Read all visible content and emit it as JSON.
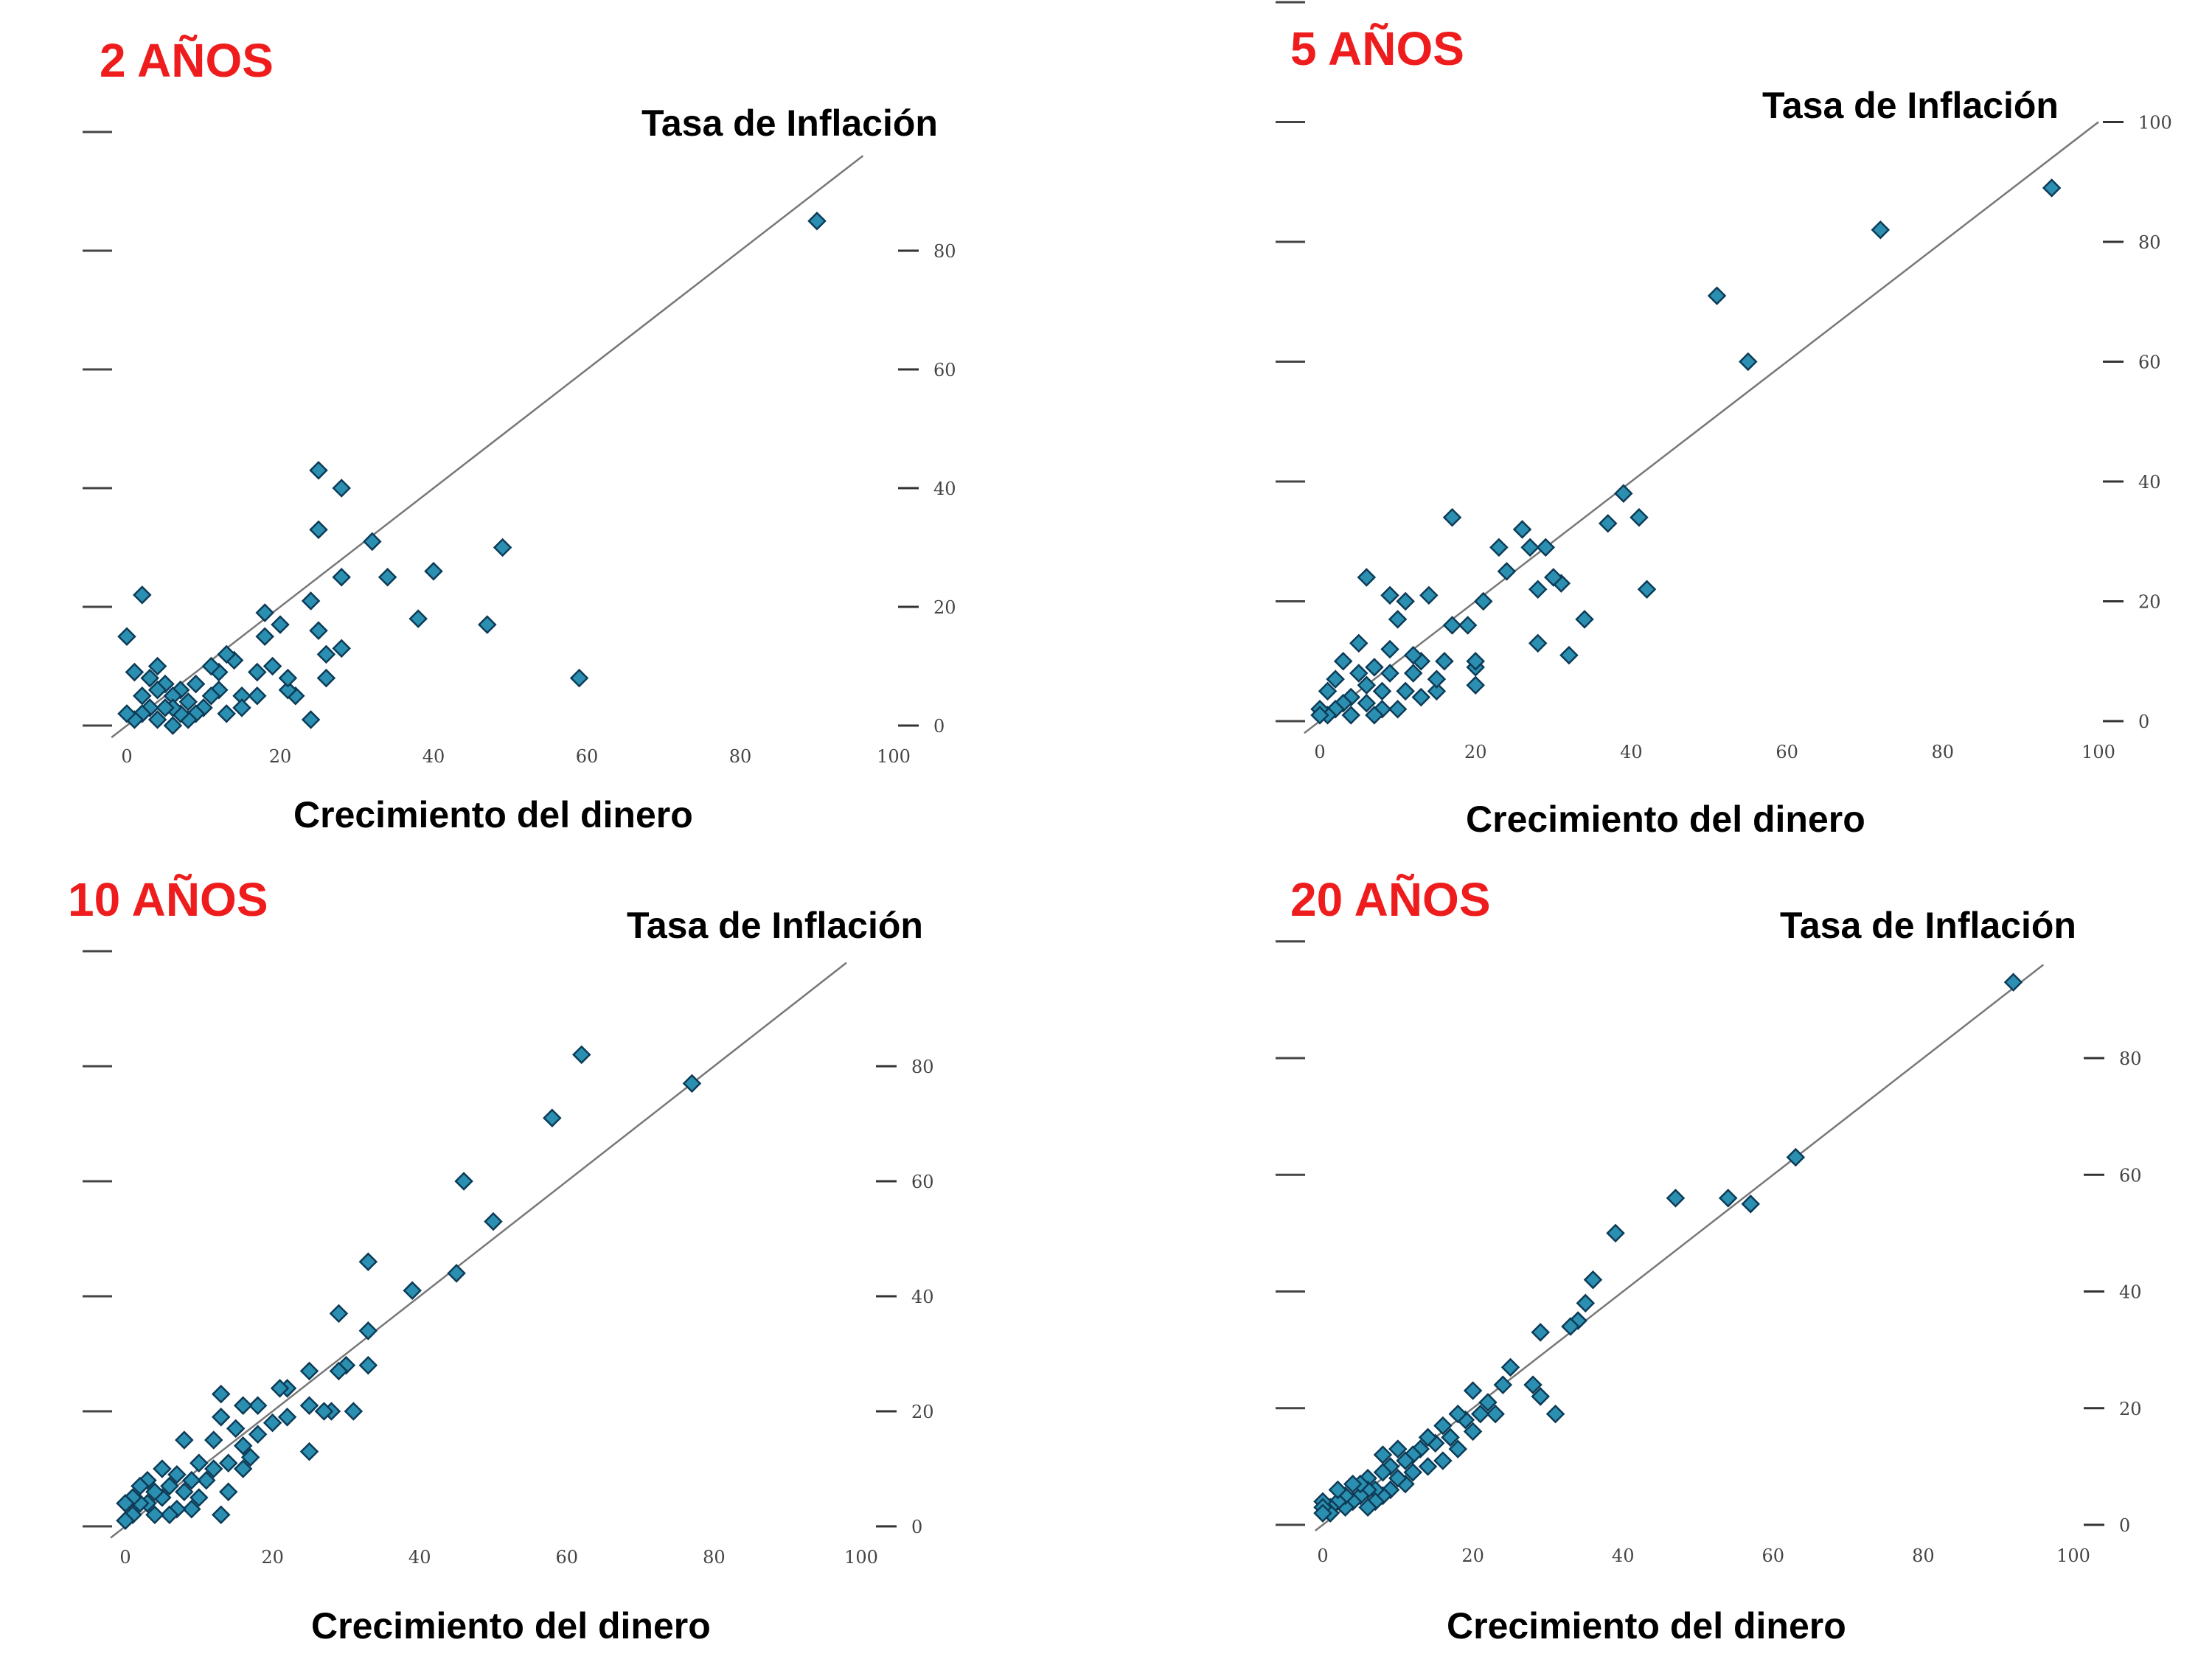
{
  "colors": {
    "title": "#ee1c1c",
    "point_fill": "#2a8fb0",
    "point_stroke": "#0d3b57",
    "trend": "#777777"
  },
  "chart_data": [
    {
      "type": "scatter",
      "title": "2 AÑOS",
      "ylabel": "Tasa de Inflación",
      "xlabel": "Crecimiento del dinero",
      "xlim": [
        0,
        100
      ],
      "ylim": [
        0,
        100
      ],
      "xticks": [
        "0",
        "20",
        "40",
        "60",
        "80",
        "100"
      ],
      "yticks": [
        "0",
        "20",
        "40",
        "60",
        "80"
      ],
      "trend_line": [
        [
          -2,
          -2
        ],
        [
          96,
          96
        ]
      ],
      "points": [
        [
          90,
          85
        ],
        [
          59,
          8
        ],
        [
          49,
          30
        ],
        [
          47,
          17
        ],
        [
          40,
          26
        ],
        [
          38,
          18
        ],
        [
          34,
          25
        ],
        [
          32,
          31
        ],
        [
          28,
          40
        ],
        [
          28,
          25
        ],
        [
          28,
          13
        ],
        [
          25,
          43
        ],
        [
          25,
          33
        ],
        [
          26,
          12
        ],
        [
          25,
          16
        ],
        [
          26,
          8
        ],
        [
          24,
          21
        ],
        [
          24,
          1
        ],
        [
          22,
          5
        ],
        [
          21,
          6
        ],
        [
          21,
          8
        ],
        [
          20,
          17
        ],
        [
          19,
          10
        ],
        [
          18,
          19
        ],
        [
          18,
          15
        ],
        [
          17,
          9
        ],
        [
          17,
          5
        ],
        [
          15,
          5
        ],
        [
          15,
          3
        ],
        [
          14,
          11
        ],
        [
          13,
          12
        ],
        [
          13,
          2
        ],
        [
          12,
          9
        ],
        [
          12,
          6
        ],
        [
          11,
          10
        ],
        [
          11,
          5
        ],
        [
          10,
          3
        ],
        [
          9,
          7
        ],
        [
          9,
          2
        ],
        [
          8,
          4
        ],
        [
          8,
          1
        ],
        [
          7,
          6
        ],
        [
          7,
          2
        ],
        [
          6,
          5
        ],
        [
          6,
          3
        ],
        [
          6,
          0
        ],
        [
          5,
          7
        ],
        [
          5,
          3
        ],
        [
          4,
          10
        ],
        [
          4,
          6
        ],
        [
          4,
          1
        ],
        [
          3,
          8
        ],
        [
          3,
          3
        ],
        [
          2,
          22
        ],
        [
          2,
          5
        ],
        [
          2,
          2
        ],
        [
          1,
          9
        ],
        [
          1,
          1
        ],
        [
          0,
          15
        ],
        [
          0,
          2
        ]
      ]
    },
    {
      "type": "scatter",
      "title": "5 AÑOS",
      "ylabel": "Tasa de Inflación",
      "xlabel": "Crecimiento del dinero",
      "xlim": [
        0,
        100
      ],
      "ylim": [
        0,
        100
      ],
      "xticks": [
        "0",
        "20",
        "40",
        "60",
        "80",
        "100"
      ],
      "yticks": [
        "0",
        "20",
        "40",
        "60",
        "80",
        "100"
      ],
      "trend_line": [
        [
          -2,
          -2
        ],
        [
          100,
          100
        ]
      ],
      "points": [
        [
          94,
          89
        ],
        [
          72,
          82
        ],
        [
          51,
          71
        ],
        [
          55,
          60
        ],
        [
          39,
          38
        ],
        [
          41,
          34
        ],
        [
          37,
          33
        ],
        [
          42,
          22
        ],
        [
          34,
          17
        ],
        [
          32,
          11
        ],
        [
          31,
          23
        ],
        [
          30,
          24
        ],
        [
          29,
          29
        ],
        [
          28,
          22
        ],
        [
          28,
          13
        ],
        [
          27,
          29
        ],
        [
          26,
          32
        ],
        [
          24,
          25
        ],
        [
          23,
          29
        ],
        [
          21,
          20
        ],
        [
          20,
          6
        ],
        [
          20,
          9
        ],
        [
          20,
          10
        ],
        [
          19,
          16
        ],
        [
          17,
          34
        ],
        [
          17,
          16
        ],
        [
          16,
          10
        ],
        [
          15,
          5
        ],
        [
          15,
          7
        ],
        [
          14,
          21
        ],
        [
          13,
          10
        ],
        [
          13,
          4
        ],
        [
          12,
          8
        ],
        [
          12,
          11
        ],
        [
          11,
          20
        ],
        [
          11,
          5
        ],
        [
          10,
          17
        ],
        [
          10,
          2
        ],
        [
          9,
          21
        ],
        [
          9,
          8
        ],
        [
          9,
          12
        ],
        [
          8,
          5
        ],
        [
          8,
          2
        ],
        [
          7,
          9
        ],
        [
          7,
          1
        ],
        [
          6,
          24
        ],
        [
          6,
          6
        ],
        [
          6,
          3
        ],
        [
          5,
          13
        ],
        [
          5,
          8
        ],
        [
          4,
          4
        ],
        [
          4,
          1
        ],
        [
          3,
          10
        ],
        [
          3,
          3
        ],
        [
          2,
          7
        ],
        [
          2,
          2
        ],
        [
          1,
          5
        ],
        [
          1,
          1
        ],
        [
          0,
          2
        ],
        [
          0,
          1
        ]
      ]
    },
    {
      "type": "scatter",
      "title": "10 AÑOS",
      "ylabel": "Tasa de Inflación",
      "xlabel": "Crecimiento del dinero",
      "xlim": [
        0,
        100
      ],
      "ylim": [
        0,
        100
      ],
      "xticks": [
        "0",
        "20",
        "40",
        "60",
        "80",
        "100"
      ],
      "yticks": [
        "0",
        "20",
        "40",
        "60",
        "80"
      ],
      "trend_line": [
        [
          -2,
          -2
        ],
        [
          98,
          98
        ]
      ],
      "points": [
        [
          62,
          82
        ],
        [
          58,
          71
        ],
        [
          77,
          77
        ],
        [
          46,
          60
        ],
        [
          50,
          53
        ],
        [
          45,
          44
        ],
        [
          39,
          41
        ],
        [
          33,
          46
        ],
        [
          33,
          34
        ],
        [
          33,
          28
        ],
        [
          31,
          20
        ],
        [
          30,
          28
        ],
        [
          29,
          37
        ],
        [
          29,
          27
        ],
        [
          28,
          20
        ],
        [
          27,
          20
        ],
        [
          25,
          27
        ],
        [
          25,
          21
        ],
        [
          25,
          13
        ],
        [
          22,
          24
        ],
        [
          22,
          19
        ],
        [
          21,
          24
        ],
        [
          20,
          18
        ],
        [
          18,
          21
        ],
        [
          18,
          16
        ],
        [
          17,
          12
        ],
        [
          16,
          21
        ],
        [
          16,
          14
        ],
        [
          16,
          10
        ],
        [
          15,
          17
        ],
        [
          14,
          11
        ],
        [
          14,
          6
        ],
        [
          13,
          23
        ],
        [
          13,
          19
        ],
        [
          13,
          2
        ],
        [
          12,
          15
        ],
        [
          12,
          10
        ],
        [
          11,
          8
        ],
        [
          10,
          11
        ],
        [
          10,
          5
        ],
        [
          9,
          8
        ],
        [
          9,
          3
        ],
        [
          8,
          15
        ],
        [
          8,
          6
        ],
        [
          7,
          9
        ],
        [
          7,
          3
        ],
        [
          6,
          7
        ],
        [
          6,
          2
        ],
        [
          5,
          10
        ],
        [
          5,
          5
        ],
        [
          4,
          6
        ],
        [
          4,
          2
        ],
        [
          3,
          8
        ],
        [
          3,
          4
        ],
        [
          2,
          4
        ],
        [
          2,
          7
        ],
        [
          1,
          5
        ],
        [
          1,
          2
        ],
        [
          0,
          4
        ],
        [
          0,
          1
        ]
      ]
    },
    {
      "type": "scatter",
      "title": "20 AÑOS",
      "ylabel": "Tasa de Inflación",
      "xlabel": "Crecimiento del dinero",
      "xlim": [
        0,
        100
      ],
      "ylim": [
        0,
        100
      ],
      "xticks": [
        "0",
        "20",
        "40",
        "60",
        "80",
        "100"
      ],
      "yticks": [
        "0",
        "20",
        "40",
        "60",
        "80"
      ],
      "trend_line": [
        [
          -1,
          -1
        ],
        [
          96,
          96
        ]
      ],
      "points": [
        [
          92,
          93
        ],
        [
          63,
          63
        ],
        [
          57,
          55
        ],
        [
          54,
          56
        ],
        [
          47,
          56
        ],
        [
          39,
          50
        ],
        [
          36,
          42
        ],
        [
          35,
          38
        ],
        [
          34,
          35
        ],
        [
          33,
          34
        ],
        [
          31,
          19
        ],
        [
          29,
          22
        ],
        [
          29,
          33
        ],
        [
          28,
          24
        ],
        [
          25,
          27
        ],
        [
          24,
          24
        ],
        [
          23,
          19
        ],
        [
          22,
          21
        ],
        [
          21,
          19
        ],
        [
          20,
          16
        ],
        [
          20,
          23
        ],
        [
          19,
          18
        ],
        [
          18,
          19
        ],
        [
          18,
          13
        ],
        [
          17,
          15
        ],
        [
          16,
          11
        ],
        [
          16,
          17
        ],
        [
          15,
          14
        ],
        [
          14,
          10
        ],
        [
          14,
          15
        ],
        [
          13,
          13
        ],
        [
          12,
          9
        ],
        [
          12,
          12
        ],
        [
          11,
          7
        ],
        [
          11,
          11
        ],
        [
          10,
          13
        ],
        [
          10,
          8
        ],
        [
          9,
          6
        ],
        [
          9,
          10
        ],
        [
          8,
          5
        ],
        [
          8,
          9
        ],
        [
          8,
          12
        ],
        [
          7,
          6
        ],
        [
          7,
          4
        ],
        [
          6,
          8
        ],
        [
          6,
          3
        ],
        [
          6,
          6
        ],
        [
          5,
          5
        ],
        [
          5,
          7
        ],
        [
          4,
          4
        ],
        [
          4,
          7
        ],
        [
          3,
          3
        ],
        [
          3,
          5
        ],
        [
          2,
          4
        ],
        [
          2,
          6
        ],
        [
          1,
          3
        ],
        [
          1,
          2
        ],
        [
          0,
          4
        ],
        [
          0,
          3
        ],
        [
          0,
          2
        ]
      ]
    }
  ]
}
